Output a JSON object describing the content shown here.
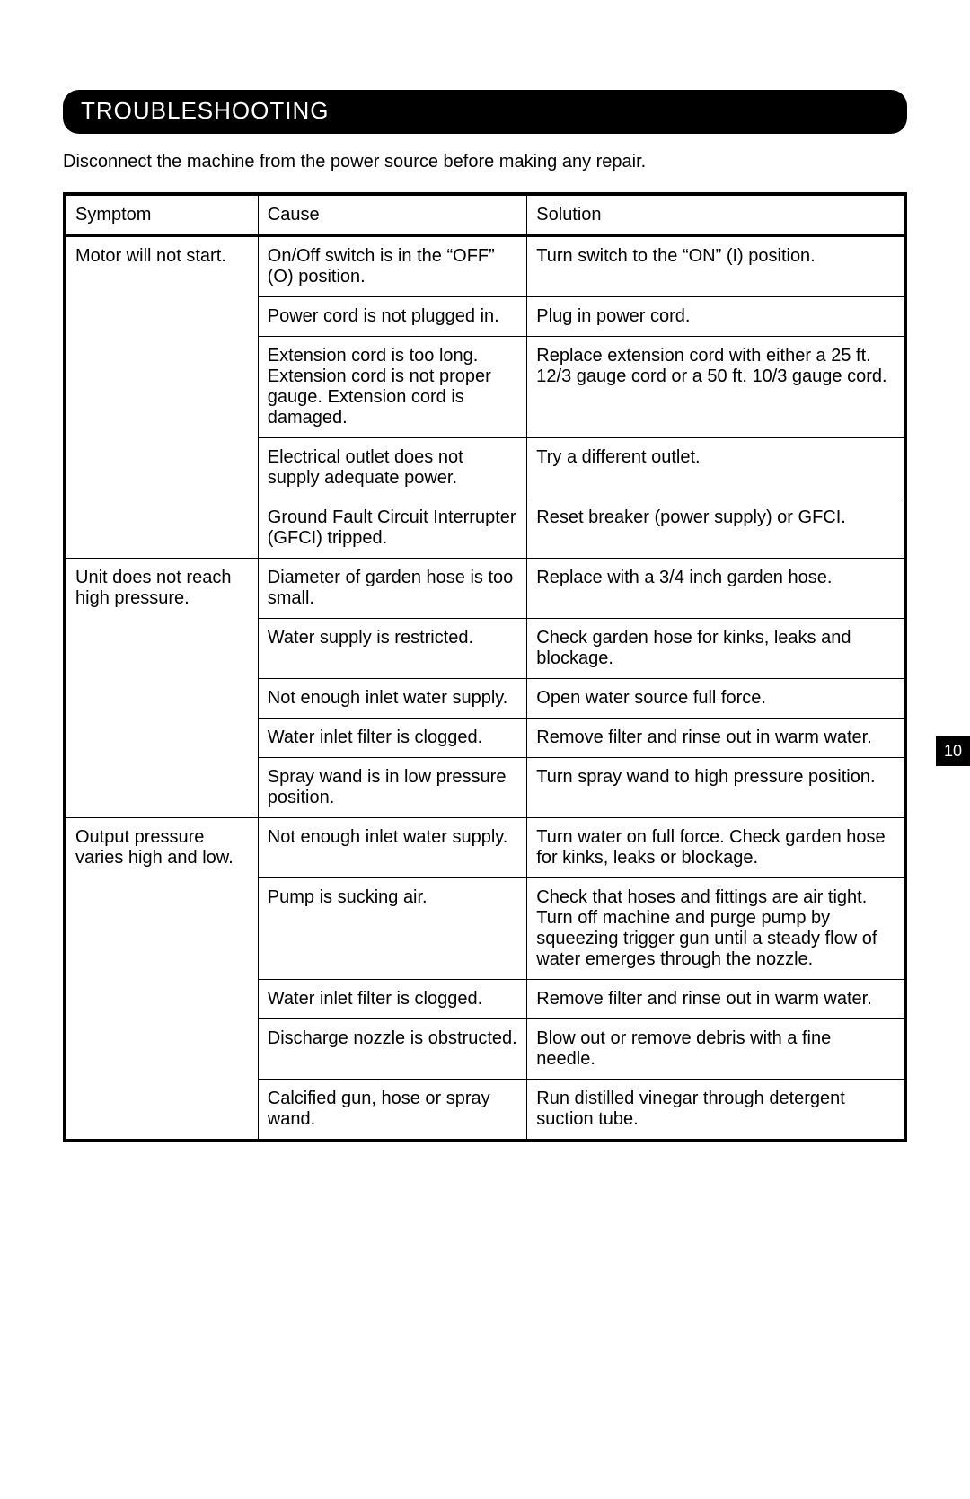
{
  "heading": "TROUBLESHOOTING",
  "intro": "Disconnect the machine from the power source before making any repair.",
  "page_number": "10",
  "headers": {
    "symptom": "Symptom",
    "cause": "Cause",
    "solution": "Solution"
  },
  "groups": [
    {
      "symptom": "Motor will not start.",
      "rows": [
        {
          "cause": "On/Off switch is in the “OFF” (O) position.",
          "solution": "Turn switch to the “ON” (I) position."
        },
        {
          "cause": "Power cord is not plugged in.",
          "solution": "Plug in power cord."
        },
        {
          "cause": "Extension cord is too long. Extension cord is not proper gauge. Extension cord is damaged.",
          "solution": "Replace extension cord with either a 25 ft. 12/3  gauge cord or a 50 ft. 10/3 gauge cord."
        },
        {
          "cause": "Electrical outlet does not supply adequate power.",
          "solution": "Try a different outlet."
        },
        {
          "cause": "Ground Fault Circuit Interrupter (GFCI) tripped.",
          "solution": "Reset breaker (power supply) or GFCI."
        }
      ]
    },
    {
      "symptom": "Unit does not reach high pressure.",
      "rows": [
        {
          "cause": "Diameter of garden hose is too small.",
          "solution": "Replace with a 3/4 inch garden hose."
        },
        {
          "cause": "Water supply is restricted.",
          "solution": "Check garden hose for kinks, leaks and blockage."
        },
        {
          "cause": "Not enough inlet water supply.",
          "solution": "Open water source full force."
        },
        {
          "cause": "Water inlet filter is clogged.",
          "solution": "Remove filter and rinse out in warm water."
        },
        {
          "cause": "Spray wand is in low pressure position.",
          "solution": "Turn spray wand to high pressure position."
        }
      ]
    },
    {
      "symptom": "Output pressure varies high and low.",
      "rows": [
        {
          "cause": "Not enough inlet water supply.",
          "solution": "Turn water on full force. Check garden hose for kinks, leaks or blockage."
        },
        {
          "cause": "Pump is sucking air.",
          "solution": "Check that hoses and fittings are air tight. Turn off machine and purge pump by squeezing trigger gun until a steady flow of water emerges through the nozzle."
        },
        {
          "cause": "Water inlet filter is clogged.",
          "solution": "Remove filter and rinse out in warm water."
        },
        {
          "cause": "Discharge nozzle is obstructed.",
          "solution": "Blow out or remove debris with a fine needle."
        },
        {
          "cause": "Calcified gun, hose or spray wand.",
          "solution": "Run distilled vinegar through detergent suction tube."
        }
      ]
    }
  ]
}
